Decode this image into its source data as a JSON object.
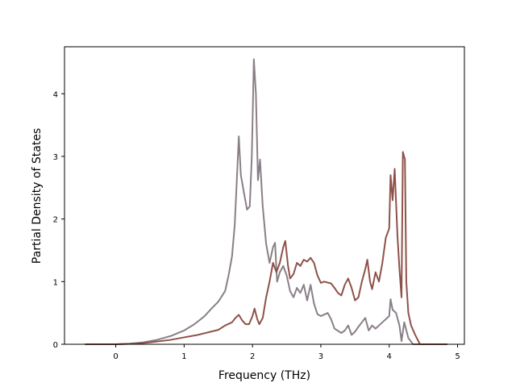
{
  "chart_data": {
    "type": "line",
    "title": "",
    "xlabel": "Frequency (THz)",
    "ylabel": "Partial Density of States",
    "xlim": [
      -0.75,
      5.1
    ],
    "ylim": [
      0,
      4.75
    ],
    "xticks": [
      0,
      1,
      2,
      3,
      4,
      5
    ],
    "yticks": [
      0,
      1,
      2,
      3,
      4
    ],
    "grid": false,
    "legend": "none",
    "series": [
      {
        "color": "#8a7f88",
        "points": [
          [
            -0.45,
            0.0
          ],
          [
            0.0,
            0.0
          ],
          [
            0.2,
            0.01
          ],
          [
            0.4,
            0.03
          ],
          [
            0.6,
            0.07
          ],
          [
            0.8,
            0.13
          ],
          [
            1.0,
            0.22
          ],
          [
            1.15,
            0.32
          ],
          [
            1.3,
            0.45
          ],
          [
            1.4,
            0.57
          ],
          [
            1.5,
            0.68
          ],
          [
            1.6,
            0.85
          ],
          [
            1.65,
            1.1
          ],
          [
            1.7,
            1.4
          ],
          [
            1.74,
            1.9
          ],
          [
            1.77,
            2.6
          ],
          [
            1.8,
            3.32
          ],
          [
            1.83,
            2.7
          ],
          [
            1.87,
            2.45
          ],
          [
            1.92,
            2.15
          ],
          [
            1.96,
            2.2
          ],
          [
            1.99,
            3.0
          ],
          [
            2.02,
            4.55
          ],
          [
            2.05,
            4.0
          ],
          [
            2.08,
            2.62
          ],
          [
            2.11,
            2.95
          ],
          [
            2.15,
            2.2
          ],
          [
            2.2,
            1.6
          ],
          [
            2.25,
            1.3
          ],
          [
            2.3,
            1.55
          ],
          [
            2.33,
            1.62
          ],
          [
            2.36,
            1.0
          ],
          [
            2.4,
            1.15
          ],
          [
            2.45,
            1.25
          ],
          [
            2.5,
            1.1
          ],
          [
            2.55,
            0.85
          ],
          [
            2.6,
            0.75
          ],
          [
            2.65,
            0.9
          ],
          [
            2.7,
            0.82
          ],
          [
            2.75,
            0.95
          ],
          [
            2.8,
            0.7
          ],
          [
            2.85,
            0.95
          ],
          [
            2.9,
            0.65
          ],
          [
            2.95,
            0.48
          ],
          [
            3.0,
            0.45
          ],
          [
            3.1,
            0.5
          ],
          [
            3.15,
            0.4
          ],
          [
            3.2,
            0.25
          ],
          [
            3.3,
            0.18
          ],
          [
            3.35,
            0.22
          ],
          [
            3.4,
            0.3
          ],
          [
            3.45,
            0.15
          ],
          [
            3.5,
            0.2
          ],
          [
            3.55,
            0.28
          ],
          [
            3.6,
            0.35
          ],
          [
            3.65,
            0.42
          ],
          [
            3.7,
            0.22
          ],
          [
            3.75,
            0.3
          ],
          [
            3.8,
            0.25
          ],
          [
            3.9,
            0.35
          ],
          [
            4.0,
            0.45
          ],
          [
            4.02,
            0.72
          ],
          [
            4.05,
            0.55
          ],
          [
            4.1,
            0.5
          ],
          [
            4.15,
            0.3
          ],
          [
            4.18,
            0.05
          ],
          [
            4.22,
            0.35
          ],
          [
            4.28,
            0.1
          ],
          [
            4.35,
            0.0
          ],
          [
            4.85,
            0.0
          ]
        ]
      },
      {
        "color": "#8e5249",
        "points": [
          [
            -0.45,
            0.0
          ],
          [
            0.0,
            0.0
          ],
          [
            0.3,
            0.01
          ],
          [
            0.5,
            0.03
          ],
          [
            0.8,
            0.07
          ],
          [
            1.0,
            0.11
          ],
          [
            1.2,
            0.15
          ],
          [
            1.35,
            0.19
          ],
          [
            1.5,
            0.23
          ],
          [
            1.6,
            0.3
          ],
          [
            1.7,
            0.35
          ],
          [
            1.75,
            0.42
          ],
          [
            1.8,
            0.47
          ],
          [
            1.85,
            0.38
          ],
          [
            1.9,
            0.32
          ],
          [
            1.95,
            0.32
          ],
          [
            2.0,
            0.45
          ],
          [
            2.03,
            0.57
          ],
          [
            2.07,
            0.4
          ],
          [
            2.1,
            0.32
          ],
          [
            2.15,
            0.42
          ],
          [
            2.2,
            0.75
          ],
          [
            2.25,
            1.0
          ],
          [
            2.3,
            1.3
          ],
          [
            2.35,
            1.15
          ],
          [
            2.4,
            1.3
          ],
          [
            2.45,
            1.55
          ],
          [
            2.48,
            1.65
          ],
          [
            2.52,
            1.25
          ],
          [
            2.55,
            1.05
          ],
          [
            2.6,
            1.12
          ],
          [
            2.65,
            1.3
          ],
          [
            2.7,
            1.25
          ],
          [
            2.75,
            1.35
          ],
          [
            2.8,
            1.32
          ],
          [
            2.85,
            1.38
          ],
          [
            2.9,
            1.3
          ],
          [
            2.95,
            1.1
          ],
          [
            3.0,
            0.98
          ],
          [
            3.05,
            1.0
          ],
          [
            3.15,
            0.97
          ],
          [
            3.2,
            0.9
          ],
          [
            3.25,
            0.82
          ],
          [
            3.3,
            0.78
          ],
          [
            3.35,
            0.95
          ],
          [
            3.4,
            1.05
          ],
          [
            3.45,
            0.9
          ],
          [
            3.5,
            0.7
          ],
          [
            3.55,
            0.75
          ],
          [
            3.6,
            1.0
          ],
          [
            3.65,
            1.2
          ],
          [
            3.68,
            1.35
          ],
          [
            3.72,
            1.0
          ],
          [
            3.75,
            0.88
          ],
          [
            3.8,
            1.15
          ],
          [
            3.85,
            1.0
          ],
          [
            3.9,
            1.3
          ],
          [
            3.95,
            1.7
          ],
          [
            4.0,
            1.85
          ],
          [
            4.02,
            2.7
          ],
          [
            4.05,
            2.3
          ],
          [
            4.08,
            2.8
          ],
          [
            4.12,
            1.75
          ],
          [
            4.15,
            1.2
          ],
          [
            4.18,
            0.75
          ],
          [
            4.2,
            3.07
          ],
          [
            4.23,
            2.95
          ],
          [
            4.25,
            1.0
          ],
          [
            4.28,
            0.5
          ],
          [
            4.32,
            0.3
          ],
          [
            4.38,
            0.15
          ],
          [
            4.45,
            0.0
          ],
          [
            4.85,
            0.0
          ]
        ]
      }
    ]
  }
}
